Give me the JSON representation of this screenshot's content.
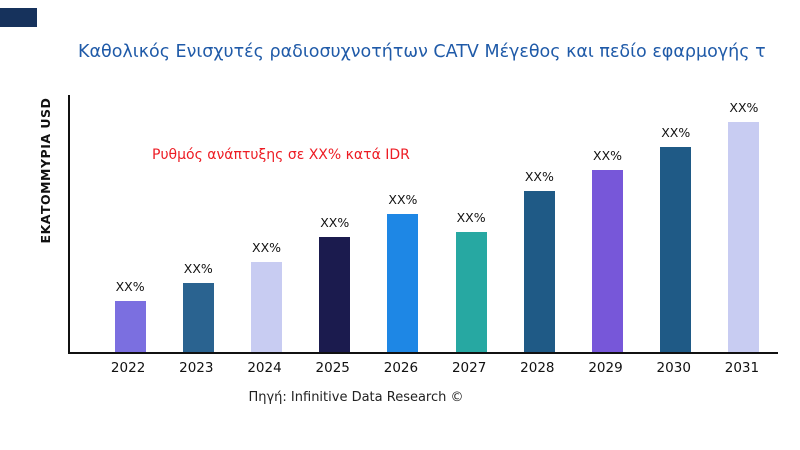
{
  "colors": {
    "title": "#1F5AA8",
    "annotation": "#ED1C24",
    "axis": "#111111",
    "corner_block": "#16325C"
  },
  "chart_data": {
    "type": "bar",
    "title": "Καθολικός Ενισχυτές ραδιοσυχνοτήτων CATV Μέγεθος και πεδίο εφαρμογής τ",
    "ylabel": "ΕΚΑΤΟΜΜΥΡΙΑ USD",
    "xlabel": "",
    "categories": [
      "2022",
      "2023",
      "2024",
      "2025",
      "2026",
      "2027",
      "2028",
      "2029",
      "2030",
      "2031"
    ],
    "values": [
      22,
      30,
      39,
      50,
      60,
      52,
      70,
      79,
      89,
      100
    ],
    "value_units": "relative-index (max year 2031 = 100, numeric axis not labeled)",
    "bar_labels": [
      "XX%",
      "XX%",
      "XX%",
      "XX%",
      "XX%",
      "XX%",
      "XX%",
      "XX%",
      "XX%",
      "XX%"
    ],
    "bar_colors": [
      "#7B6FE0",
      "#2A6390",
      "#C8CCF2",
      "#1B1B4E",
      "#1E87E5",
      "#27A8A2",
      "#1F5A86",
      "#7757D9",
      "#1F5A86",
      "#C8CCF2"
    ],
    "annotation": "Ρυθμός ανάπτυξης σε XX% κατά IDR",
    "source": "Πηγή: Infinitive Data Research ©",
    "ylim": [
      0,
      110
    ],
    "grid": false,
    "legend": false
  }
}
